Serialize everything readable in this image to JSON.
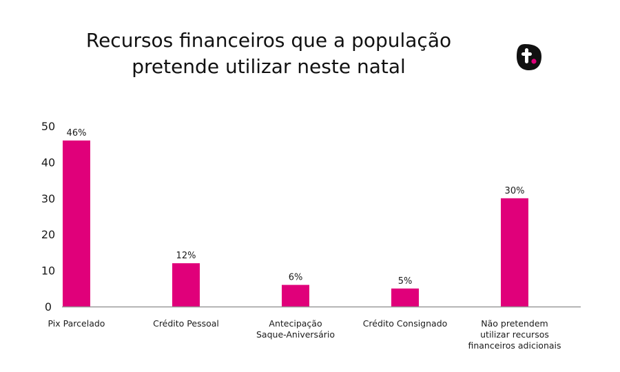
{
  "title_lines": [
    "Recursos financeiros que a população",
    "pretende utilizar neste natal"
  ],
  "logo": {
    "icon": "t-dot-logo",
    "letter": "t.",
    "bg_color": "#111111",
    "dot_color": "#e0007a"
  },
  "chart_data": {
    "type": "bar",
    "categories": [
      [
        "Pix Parcelado"
      ],
      [
        "Crédito Pessoal"
      ],
      [
        "Antecipação",
        "Saque-Aniversário"
      ],
      [
        "Crédito Consignado"
      ],
      [
        "Não pretendem",
        "utilizar recursos",
        "financeiros adicionais"
      ]
    ],
    "values": [
      46,
      12,
      6,
      5,
      30
    ],
    "data_labels": [
      "46%",
      "12%",
      "6%",
      "5%",
      "30%"
    ],
    "ylim": [
      0,
      50
    ],
    "yticks": [
      0,
      10,
      20,
      30,
      40,
      50
    ],
    "bar_color": "#e0007a",
    "axis_color": "#999999",
    "grid": false,
    "legend": "none"
  }
}
